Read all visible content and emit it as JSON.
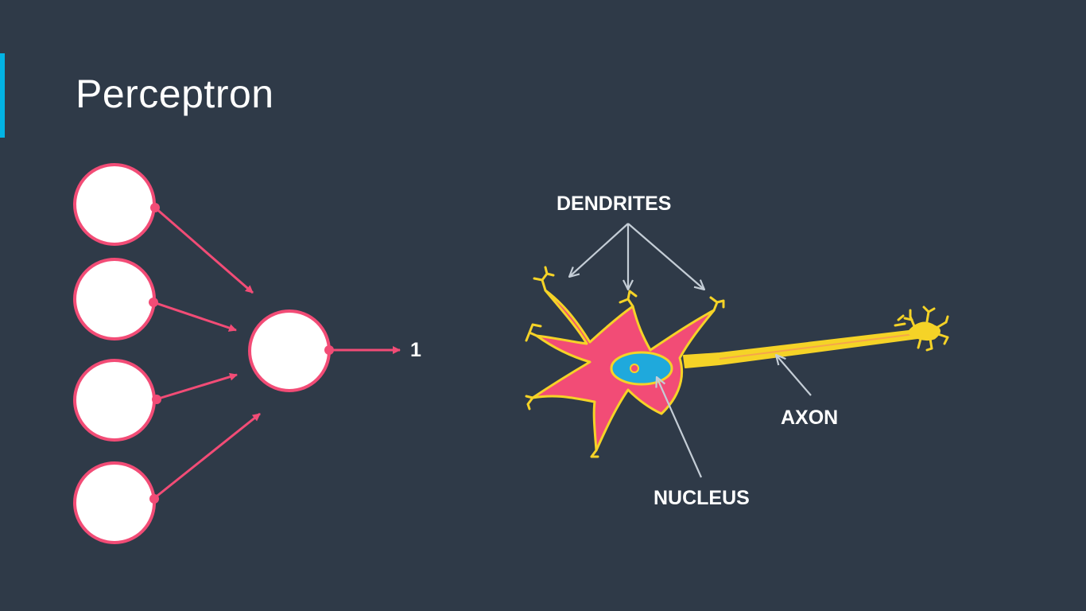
{
  "slide": {
    "title": "Perceptron"
  },
  "perceptron": {
    "input_count": 4,
    "output_label": "1"
  },
  "neuron": {
    "labels": {
      "dendrites": "DENDRITES",
      "nucleus": "NUCLEUS",
      "axon": "AXON"
    }
  },
  "colors": {
    "background": "#2f3a48",
    "accent": "#02b3e4",
    "node_stroke": "#f24c76",
    "node_fill": "#ffffff",
    "cell_body": "#f24c76",
    "cell_outline": "#f5d327",
    "nucleus": "#1fa9dc",
    "pointer": "#c4cdd6"
  }
}
